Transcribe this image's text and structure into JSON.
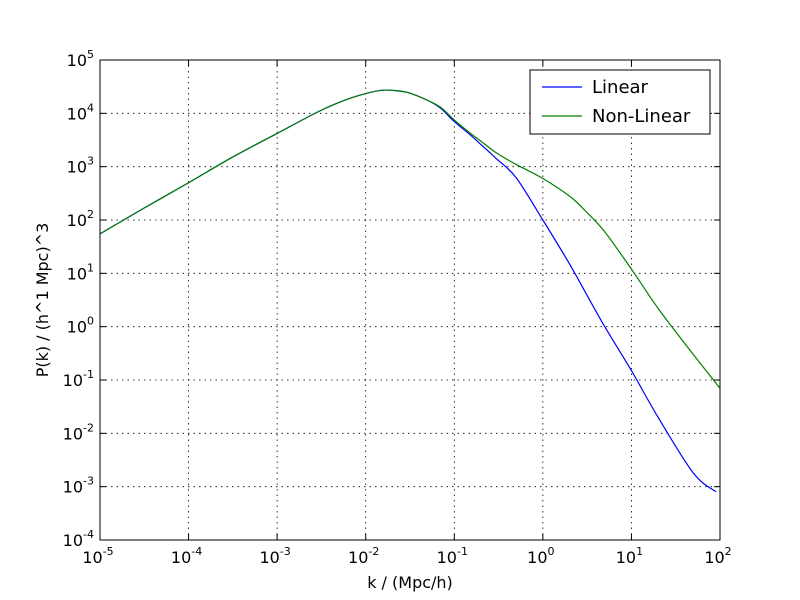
{
  "chart_data": {
    "type": "line",
    "xscale": "log",
    "yscale": "log",
    "xlim": [
      1e-05,
      100
    ],
    "ylim": [
      0.0001,
      100000.0
    ],
    "grid": true,
    "legend_position": "top-right",
    "xlabel": "k / (Mpc/h)",
    "ylabel": "P(k) / (h^1 Mpc)^3",
    "xticks": [
      {
        "base": "10",
        "exp": "-5"
      },
      {
        "base": "10",
        "exp": "-4"
      },
      {
        "base": "10",
        "exp": "-3"
      },
      {
        "base": "10",
        "exp": "-2"
      },
      {
        "base": "10",
        "exp": "-1"
      },
      {
        "base": "10",
        "exp": "0"
      },
      {
        "base": "10",
        "exp": "1"
      },
      {
        "base": "10",
        "exp": "2"
      }
    ],
    "yticks": [
      {
        "base": "10",
        "exp": "-4"
      },
      {
        "base": "10",
        "exp": "-3"
      },
      {
        "base": "10",
        "exp": "-2"
      },
      {
        "base": "10",
        "exp": "-1"
      },
      {
        "base": "10",
        "exp": "0"
      },
      {
        "base": "10",
        "exp": "1"
      },
      {
        "base": "10",
        "exp": "2"
      },
      {
        "base": "10",
        "exp": "3"
      },
      {
        "base": "10",
        "exp": "4"
      },
      {
        "base": "10",
        "exp": "5"
      }
    ],
    "series": [
      {
        "name": "Linear",
        "color": "#0000ff",
        "x": [
          1e-05,
          3e-05,
          0.0001,
          0.0003,
          0.001,
          0.003,
          0.006,
          0.01,
          0.015,
          0.02,
          0.03,
          0.05,
          0.07,
          0.1,
          0.15,
          0.2,
          0.3,
          0.5,
          1,
          2,
          3,
          5,
          10,
          20,
          50,
          90
        ],
        "y": [
          55,
          160,
          500,
          1450,
          4200,
          11000,
          18000,
          23500,
          27000,
          27000,
          24500,
          17500,
          12500,
          7000,
          4000,
          2600,
          1400,
          620,
          100,
          15,
          4.5,
          1.0,
          0.15,
          0.02,
          0.0018,
          0.0008
        ]
      },
      {
        "name": "Non-Linear",
        "color": "#008000",
        "x": [
          1e-05,
          3e-05,
          0.0001,
          0.0003,
          0.001,
          0.003,
          0.006,
          0.01,
          0.015,
          0.02,
          0.03,
          0.05,
          0.07,
          0.1,
          0.15,
          0.2,
          0.3,
          0.5,
          1,
          2,
          3,
          5,
          10,
          20,
          50,
          100
        ],
        "y": [
          55,
          160,
          500,
          1450,
          4200,
          11000,
          18000,
          23500,
          27000,
          27000,
          24500,
          17500,
          13000,
          7500,
          4300,
          3000,
          1800,
          1100,
          600,
          280,
          150,
          60,
          12,
          2.2,
          0.3,
          0.07
        ]
      }
    ]
  }
}
